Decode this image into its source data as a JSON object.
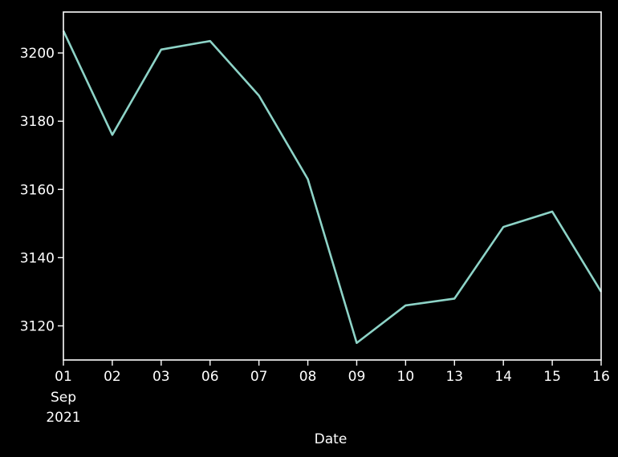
{
  "chart_data": {
    "type": "line",
    "title": "",
    "xlabel": "Date",
    "ylabel": "",
    "x": [
      "2021-09-01",
      "2021-09-02",
      "2021-09-03",
      "2021-09-06",
      "2021-09-07",
      "2021-09-08",
      "2021-09-09",
      "2021-09-10",
      "2021-09-13",
      "2021-09-14",
      "2021-09-15",
      "2021-09-16"
    ],
    "x_tick_labels": [
      "01",
      "02",
      "03",
      "06",
      "07",
      "08",
      "09",
      "10",
      "13",
      "14",
      "15",
      "16"
    ],
    "x_tick_sublabels": [
      "Sep",
      "2021"
    ],
    "series": [
      {
        "values": [
          3206.5,
          3176,
          3201,
          3203.5,
          3187.5,
          3163,
          3115,
          3126,
          3128,
          3149,
          3153.5,
          3130
        ]
      }
    ],
    "ylim": [
      3110,
      3212
    ],
    "y_ticks": [
      3120,
      3140,
      3160,
      3180,
      3200
    ],
    "y_tick_labels": [
      "3120",
      "3140",
      "3160",
      "3180",
      "3200"
    ],
    "grid": false,
    "colors": {
      "background": "#000000",
      "axes": "#ffffff",
      "line": "#8dd3c7"
    }
  }
}
